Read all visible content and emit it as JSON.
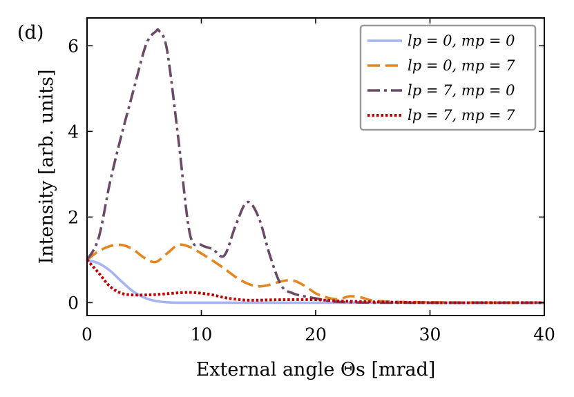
{
  "panel_label": "(d)",
  "chart_data": {
    "type": "line",
    "title": "",
    "xlabel": "External angle Θs [mrad]",
    "ylabel": "Intensity [arb. units]",
    "xlim": [
      0,
      40
    ],
    "ylim": [
      -0.3,
      6.65
    ],
    "xticks": [
      0,
      10,
      20,
      30,
      40
    ],
    "yticks": [
      0,
      2,
      4,
      6
    ],
    "legend_position": "top-right",
    "series": [
      {
        "name": "l_p = 0, m_p = 0",
        "label": "lp = 0, mp = 0",
        "color": "#a4b4f4",
        "style": "solid",
        "x": [
          0,
          1,
          2,
          3,
          4,
          5,
          6,
          7,
          8,
          10,
          15,
          20,
          25,
          30,
          35,
          40
        ],
        "y": [
          1.0,
          0.92,
          0.75,
          0.5,
          0.27,
          0.12,
          0.04,
          0.01,
          0.0,
          0.0,
          0.0,
          0.0,
          0.0,
          0.0,
          0.0,
          0.0
        ]
      },
      {
        "name": "l_p = 0, m_p = 7",
        "label": "lp = 0, mp = 7",
        "color": "#e4861f",
        "style": "dashed",
        "x": [
          0,
          1,
          2,
          3,
          4,
          5,
          6,
          7,
          8,
          9,
          10,
          11,
          12,
          13,
          14,
          15,
          16,
          17,
          18,
          19,
          20,
          21,
          22,
          23,
          24,
          25,
          27,
          30,
          35,
          40
        ],
        "y": [
          1.0,
          1.2,
          1.32,
          1.35,
          1.25,
          1.05,
          0.95,
          1.15,
          1.35,
          1.3,
          1.15,
          0.98,
          0.8,
          0.6,
          0.45,
          0.38,
          0.42,
          0.5,
          0.52,
          0.4,
          0.22,
          0.12,
          0.08,
          0.15,
          0.12,
          0.05,
          0.02,
          0.01,
          0.0,
          0.0
        ]
      },
      {
        "name": "l_p = 7, m_p = 0",
        "label": "lp = 7, mp = 0",
        "color": "#6b4a68",
        "style": "dashdot",
        "x": [
          0,
          1,
          2,
          3,
          4,
          5,
          5.5,
          6,
          6.3,
          7,
          8,
          9,
          10,
          11,
          12,
          13,
          14,
          15,
          16,
          17,
          18,
          19,
          20,
          21,
          22,
          25,
          30,
          35,
          40
        ],
        "y": [
          1.0,
          1.5,
          2.8,
          3.9,
          4.9,
          5.9,
          6.2,
          6.33,
          6.35,
          5.9,
          3.8,
          1.6,
          1.35,
          1.25,
          1.1,
          1.8,
          2.35,
          2.0,
          1.1,
          0.4,
          0.22,
          0.15,
          0.1,
          0.05,
          0.02,
          0.0,
          0.0,
          0.0,
          0.0
        ]
      },
      {
        "name": "l_p = 7, m_p = 7",
        "label": "lp = 7, mp = 7",
        "color": "#c00000",
        "style": "dotted",
        "x": [
          0,
          1,
          2,
          3,
          4,
          5,
          6,
          7,
          8,
          9,
          10,
          11,
          12,
          13,
          14,
          15,
          17,
          20,
          22,
          25,
          30,
          35,
          40
        ],
        "y": [
          1.0,
          0.7,
          0.38,
          0.22,
          0.18,
          0.18,
          0.19,
          0.21,
          0.23,
          0.24,
          0.22,
          0.18,
          0.12,
          0.08,
          0.06,
          0.06,
          0.07,
          0.07,
          0.04,
          0.02,
          0.0,
          0.0,
          0.0
        ]
      }
    ]
  }
}
